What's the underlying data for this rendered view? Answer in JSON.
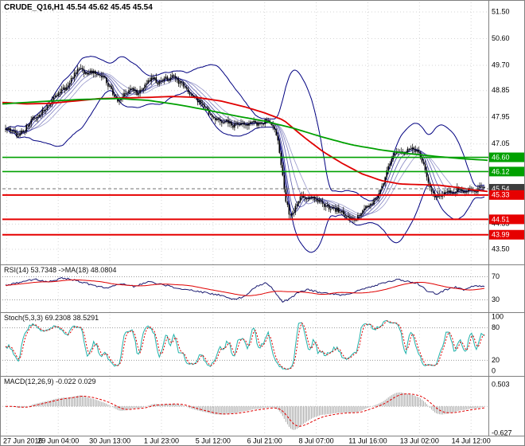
{
  "header": {
    "text": "CRUDE_Q16,H1 45.54 45.62 45.45 45.54",
    "symbol": "CRUDE_Q16",
    "timeframe": "H1",
    "open": "45.54",
    "high": "45.62",
    "low": "45.45",
    "close": "45.54"
  },
  "panes": {
    "rsi_label": "RSI(14) 53.7348 ->MA(18) 48.0804",
    "stoch_label": "Stoch(5,3,3) 69.2308 38.5291",
    "macd_label": "MACD(12,26,9) -0.022 0.029"
  },
  "colors": {
    "grid": "#D6D6D6",
    "candle": "#000000",
    "band": "#000080",
    "ma_red": "#E00000",
    "ma_green": "#00A000",
    "rsi": "#191970",
    "rsi_ma": "#E00000",
    "stoch_k": "#20B2AA",
    "stoch_d": "#E00000",
    "macd_hist": "#A8A8A8",
    "macd_signal": "#E00000",
    "separator": "#808080",
    "axis_text": "#000000"
  },
  "price_axis": {
    "ticks": [
      {
        "label": "51.50",
        "value": 51.5
      },
      {
        "label": "50.60",
        "value": 50.6
      },
      {
        "label": "49.70",
        "value": 49.7
      },
      {
        "label": "48.85",
        "value": 48.85
      },
      {
        "label": "47.95",
        "value": 47.95
      },
      {
        "label": "47.05",
        "value": 47.05
      },
      {
        "label": "44.35",
        "value": 44.35
      },
      {
        "label": "43.50",
        "value": 43.5
      }
    ],
    "badges": [
      {
        "label": "46.60",
        "value": 46.6,
        "bg": "#00A000"
      },
      {
        "label": "46.12",
        "value": 46.12,
        "bg": "#00A000"
      },
      {
        "label": "45.54",
        "value": 45.54,
        "bg": "#3C3C3C"
      },
      {
        "label": "45.33",
        "value": 45.33,
        "bg": "#E60000"
      },
      {
        "label": "44.51",
        "value": 44.51,
        "bg": "#E60000"
      },
      {
        "label": "43.99",
        "value": 43.99,
        "bg": "#E60000"
      }
    ]
  },
  "time_axis": {
    "labels": [
      "27 Jun 2016",
      "29 Jun 04:00",
      "30 Jun 13:00",
      "1 Jul 23:00",
      "5 Jul 12:00",
      "6 Jul 21:00",
      "8 Jul 07:00",
      "11 Jul 16:00",
      "13 Jul 02:00",
      "14 Jul 12:00"
    ],
    "positions": [
      0.012,
      0.118,
      0.224,
      0.33,
      0.436,
      0.542,
      0.648,
      0.754,
      0.86,
      0.966
    ]
  },
  "chart_data": [
    {
      "type": "candlestick",
      "symbol": "CRUDE_Q16",
      "timeframe": "H1",
      "current_bar": {
        "open": 45.54,
        "high": 45.62,
        "low": 45.45,
        "close": 45.54
      },
      "y_range": [
        42.99,
        51.82
      ],
      "close_path": [
        [
          0,
          47.6
        ],
        [
          0.012,
          47.5
        ],
        [
          0.025,
          47.3
        ],
        [
          0.04,
          47.55
        ],
        [
          0.055,
          47.85
        ],
        [
          0.07,
          48.05
        ],
        [
          0.085,
          48.25
        ],
        [
          0.1,
          48.55
        ],
        [
          0.115,
          48.8
        ],
        [
          0.13,
          49.05
        ],
        [
          0.145,
          49.4
        ],
        [
          0.155,
          49.65
        ],
        [
          0.165,
          49.35
        ],
        [
          0.178,
          49.5
        ],
        [
          0.19,
          49.4
        ],
        [
          0.205,
          49.3
        ],
        [
          0.222,
          48.8
        ],
        [
          0.235,
          48.45
        ],
        [
          0.25,
          48.75
        ],
        [
          0.263,
          49.0
        ],
        [
          0.275,
          48.7
        ],
        [
          0.29,
          48.95
        ],
        [
          0.305,
          49.3
        ],
        [
          0.32,
          49.1
        ],
        [
          0.335,
          49.25
        ],
        [
          0.35,
          49.3
        ],
        [
          0.365,
          49.1
        ],
        [
          0.378,
          48.9
        ],
        [
          0.393,
          48.65
        ],
        [
          0.408,
          48.4
        ],
        [
          0.423,
          48.1
        ],
        [
          0.438,
          47.9
        ],
        [
          0.452,
          47.7
        ],
        [
          0.463,
          47.85
        ],
        [
          0.475,
          47.65
        ],
        [
          0.488,
          47.75
        ],
        [
          0.5,
          47.7
        ],
        [
          0.515,
          47.8
        ],
        [
          0.53,
          47.72
        ],
        [
          0.543,
          47.82
        ],
        [
          0.553,
          47.75
        ],
        [
          0.562,
          47.55
        ],
        [
          0.57,
          47.0
        ],
        [
          0.578,
          46.1
        ],
        [
          0.585,
          45.2
        ],
        [
          0.592,
          44.72
        ],
        [
          0.6,
          44.62
        ],
        [
          0.608,
          45.05
        ],
        [
          0.617,
          45.28
        ],
        [
          0.627,
          45.18
        ],
        [
          0.64,
          45.32
        ],
        [
          0.653,
          45.12
        ],
        [
          0.667,
          44.98
        ],
        [
          0.68,
          44.9
        ],
        [
          0.694,
          44.82
        ],
        [
          0.707,
          44.7
        ],
        [
          0.72,
          44.58
        ],
        [
          0.733,
          44.5
        ],
        [
          0.744,
          44.8
        ],
        [
          0.756,
          44.98
        ],
        [
          0.768,
          45.08
        ],
        [
          0.78,
          45.35
        ],
        [
          0.79,
          45.8
        ],
        [
          0.798,
          46.25
        ],
        [
          0.807,
          46.55
        ],
        [
          0.817,
          46.82
        ],
        [
          0.828,
          46.72
        ],
        [
          0.838,
          46.88
        ],
        [
          0.849,
          46.93
        ],
        [
          0.859,
          46.83
        ],
        [
          0.869,
          46.55
        ],
        [
          0.879,
          46.0
        ],
        [
          0.887,
          45.55
        ],
        [
          0.897,
          45.32
        ],
        [
          0.908,
          45.28
        ],
        [
          0.92,
          45.48
        ],
        [
          0.932,
          45.38
        ],
        [
          0.944,
          45.55
        ],
        [
          0.956,
          45.42
        ],
        [
          0.968,
          45.56
        ],
        [
          0.98,
          45.45
        ],
        [
          0.99,
          45.55
        ],
        [
          1,
          45.54
        ]
      ],
      "ma_red_path": [
        [
          0,
          48.45
        ],
        [
          0.05,
          48.4
        ],
        [
          0.1,
          48.42
        ],
        [
          0.15,
          48.5
        ],
        [
          0.2,
          48.58
        ],
        [
          0.25,
          48.6
        ],
        [
          0.3,
          48.62
        ],
        [
          0.35,
          48.65
        ],
        [
          0.4,
          48.62
        ],
        [
          0.45,
          48.5
        ],
        [
          0.5,
          48.3
        ],
        [
          0.54,
          48.1
        ],
        [
          0.58,
          47.85
        ],
        [
          0.62,
          47.3
        ],
        [
          0.66,
          46.8
        ],
        [
          0.7,
          46.4
        ],
        [
          0.74,
          46.05
        ],
        [
          0.78,
          45.82
        ],
        [
          0.82,
          45.7
        ],
        [
          0.86,
          45.68
        ],
        [
          0.9,
          45.66
        ],
        [
          0.94,
          45.58
        ],
        [
          0.97,
          45.5
        ],
        [
          1,
          45.45
        ]
      ],
      "ma_green_path": [
        [
          0,
          48.4
        ],
        [
          0.08,
          48.48
        ],
        [
          0.16,
          48.55
        ],
        [
          0.24,
          48.58
        ],
        [
          0.3,
          48.52
        ],
        [
          0.36,
          48.38
        ],
        [
          0.42,
          48.2
        ],
        [
          0.48,
          48.0
        ],
        [
          0.54,
          47.82
        ],
        [
          0.6,
          47.58
        ],
        [
          0.66,
          47.28
        ],
        [
          0.72,
          47.02
        ],
        [
          0.78,
          46.85
        ],
        [
          0.84,
          46.72
        ],
        [
          0.9,
          46.62
        ],
        [
          0.95,
          46.55
        ],
        [
          1,
          46.5
        ]
      ],
      "band": {
        "window": 30,
        "deviation": 2.2,
        "color": "#000080"
      },
      "levels": [
        {
          "value": 46.6,
          "color": "#00A000",
          "style": "solid",
          "width": 1.6
        },
        {
          "value": 46.12,
          "color": "#00A000",
          "style": "solid",
          "width": 1.6
        },
        {
          "value": 45.54,
          "color": "#707070",
          "style": "dashed",
          "width": 1
        },
        {
          "value": 45.33,
          "color": "#E60000",
          "style": "solid",
          "width": 2
        },
        {
          "value": 44.51,
          "color": "#E60000",
          "style": "solid",
          "width": 2
        },
        {
          "value": 43.99,
          "color": "#E60000",
          "style": "solid",
          "width": 2
        }
      ]
    },
    {
      "type": "line",
      "indicator": "RSI",
      "period": 14,
      "value": 53.7348,
      "ma_period": 18,
      "ma_value": 48.0804,
      "y_range": [
        10,
        90
      ],
      "levels": [
        70,
        30
      ],
      "axis_ticks": [
        70,
        30
      ],
      "path": [
        [
          0,
          55
        ],
        [
          0.03,
          60
        ],
        [
          0.06,
          66
        ],
        [
          0.09,
          61
        ],
        [
          0.12,
          68
        ],
        [
          0.15,
          63
        ],
        [
          0.18,
          56
        ],
        [
          0.21,
          50
        ],
        [
          0.24,
          58
        ],
        [
          0.27,
          53
        ],
        [
          0.3,
          62
        ],
        [
          0.33,
          56
        ],
        [
          0.36,
          50
        ],
        [
          0.39,
          46
        ],
        [
          0.42,
          42
        ],
        [
          0.45,
          38
        ],
        [
          0.475,
          31
        ],
        [
          0.5,
          36
        ],
        [
          0.52,
          52
        ],
        [
          0.545,
          60
        ],
        [
          0.56,
          47
        ],
        [
          0.578,
          26
        ],
        [
          0.592,
          31
        ],
        [
          0.61,
          42
        ],
        [
          0.63,
          48
        ],
        [
          0.65,
          44
        ],
        [
          0.67,
          42
        ],
        [
          0.69,
          40
        ],
        [
          0.71,
          38
        ],
        [
          0.73,
          44
        ],
        [
          0.755,
          51
        ],
        [
          0.78,
          57
        ],
        [
          0.8,
          61
        ],
        [
          0.82,
          65
        ],
        [
          0.84,
          62
        ],
        [
          0.86,
          59
        ],
        [
          0.88,
          46
        ],
        [
          0.9,
          40
        ],
        [
          0.92,
          48
        ],
        [
          0.94,
          52
        ],
        [
          0.96,
          47
        ],
        [
          0.98,
          55
        ],
        [
          1,
          53.7
        ]
      ]
    },
    {
      "type": "line",
      "indicator": "Stochastic",
      "k_period": 5,
      "d_period": 3,
      "slowing": 3,
      "k_value": 69.2308,
      "d_value": 38.5291,
      "y_range": [
        0,
        100
      ],
      "levels": [
        80,
        20
      ],
      "axis_ticks": [
        100,
        80,
        20,
        0
      ]
    },
    {
      "type": "macd",
      "fast": 12,
      "slow": 26,
      "signal": 9,
      "macd_value": -0.022,
      "signal_value": 0.029,
      "axis_ticks": [
        0.503,
        -0.627
      ]
    }
  ]
}
